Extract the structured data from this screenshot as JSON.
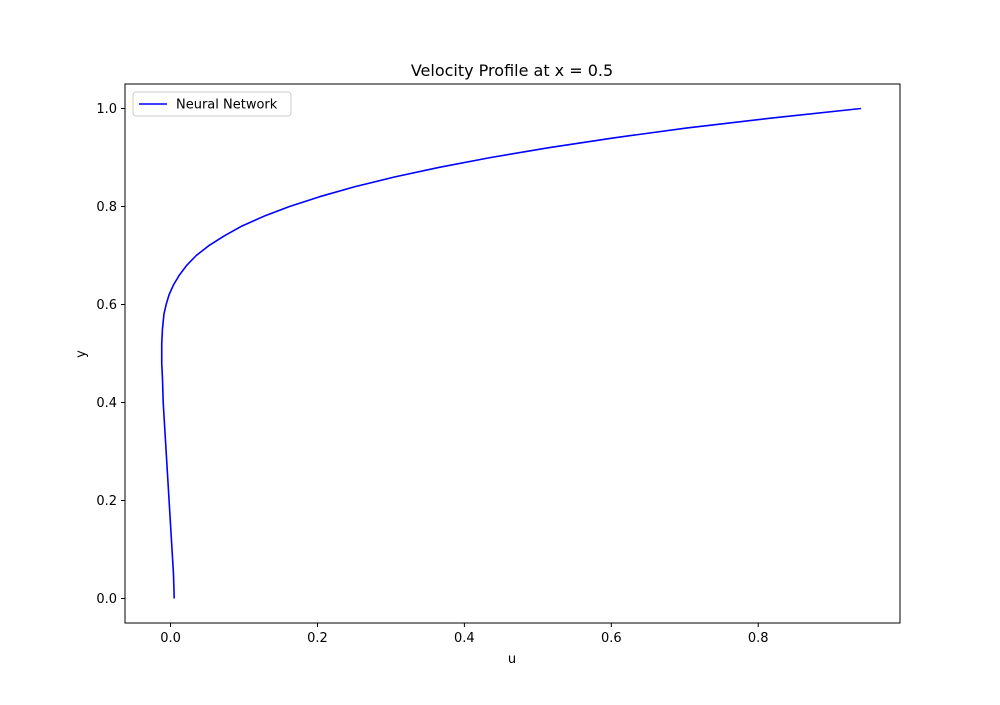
{
  "chart_data": {
    "type": "line",
    "title": "Velocity Profile at x = 0.5",
    "xlabel": "u",
    "ylabel": "y",
    "xlim": [
      -0.062,
      0.993
    ],
    "ylim": [
      -0.05,
      1.05
    ],
    "xticks": [
      0.0,
      0.2,
      0.4,
      0.6,
      0.8
    ],
    "xtick_labels": [
      "0.0",
      "0.2",
      "0.4",
      "0.6",
      "0.8"
    ],
    "yticks": [
      0.0,
      0.2,
      0.4,
      0.6,
      0.8,
      1.0
    ],
    "ytick_labels": [
      "0.0",
      "0.2",
      "0.4",
      "0.6",
      "0.8",
      "1.0"
    ],
    "grid": false,
    "legend_position": "upper-left",
    "series": [
      {
        "name": "Neural Network",
        "color": "#0000ff",
        "points": [
          [
            0.005,
            0.0
          ],
          [
            0.004,
            0.05
          ],
          [
            0.002,
            0.1
          ],
          [
            0.0,
            0.15
          ],
          [
            -0.002,
            0.2
          ],
          [
            -0.004,
            0.25
          ],
          [
            -0.006,
            0.3
          ],
          [
            -0.008,
            0.35
          ],
          [
            -0.01,
            0.4
          ],
          [
            -0.011,
            0.45
          ],
          [
            -0.012,
            0.48
          ],
          [
            -0.012,
            0.5
          ],
          [
            -0.012,
            0.52
          ],
          [
            -0.011,
            0.55
          ],
          [
            -0.009,
            0.58
          ],
          [
            -0.006,
            0.6
          ],
          [
            -0.002,
            0.62
          ],
          [
            0.004,
            0.64
          ],
          [
            0.012,
            0.66
          ],
          [
            0.022,
            0.68
          ],
          [
            0.035,
            0.7
          ],
          [
            0.052,
            0.72
          ],
          [
            0.073,
            0.74
          ],
          [
            0.097,
            0.76
          ],
          [
            0.127,
            0.78
          ],
          [
            0.162,
            0.8
          ],
          [
            0.203,
            0.82
          ],
          [
            0.25,
            0.84
          ],
          [
            0.304,
            0.86
          ],
          [
            0.366,
            0.88
          ],
          [
            0.436,
            0.9
          ],
          [
            0.515,
            0.92
          ],
          [
            0.603,
            0.94
          ],
          [
            0.702,
            0.96
          ],
          [
            0.815,
            0.98
          ],
          [
            0.94,
            1.0
          ]
        ]
      }
    ]
  }
}
